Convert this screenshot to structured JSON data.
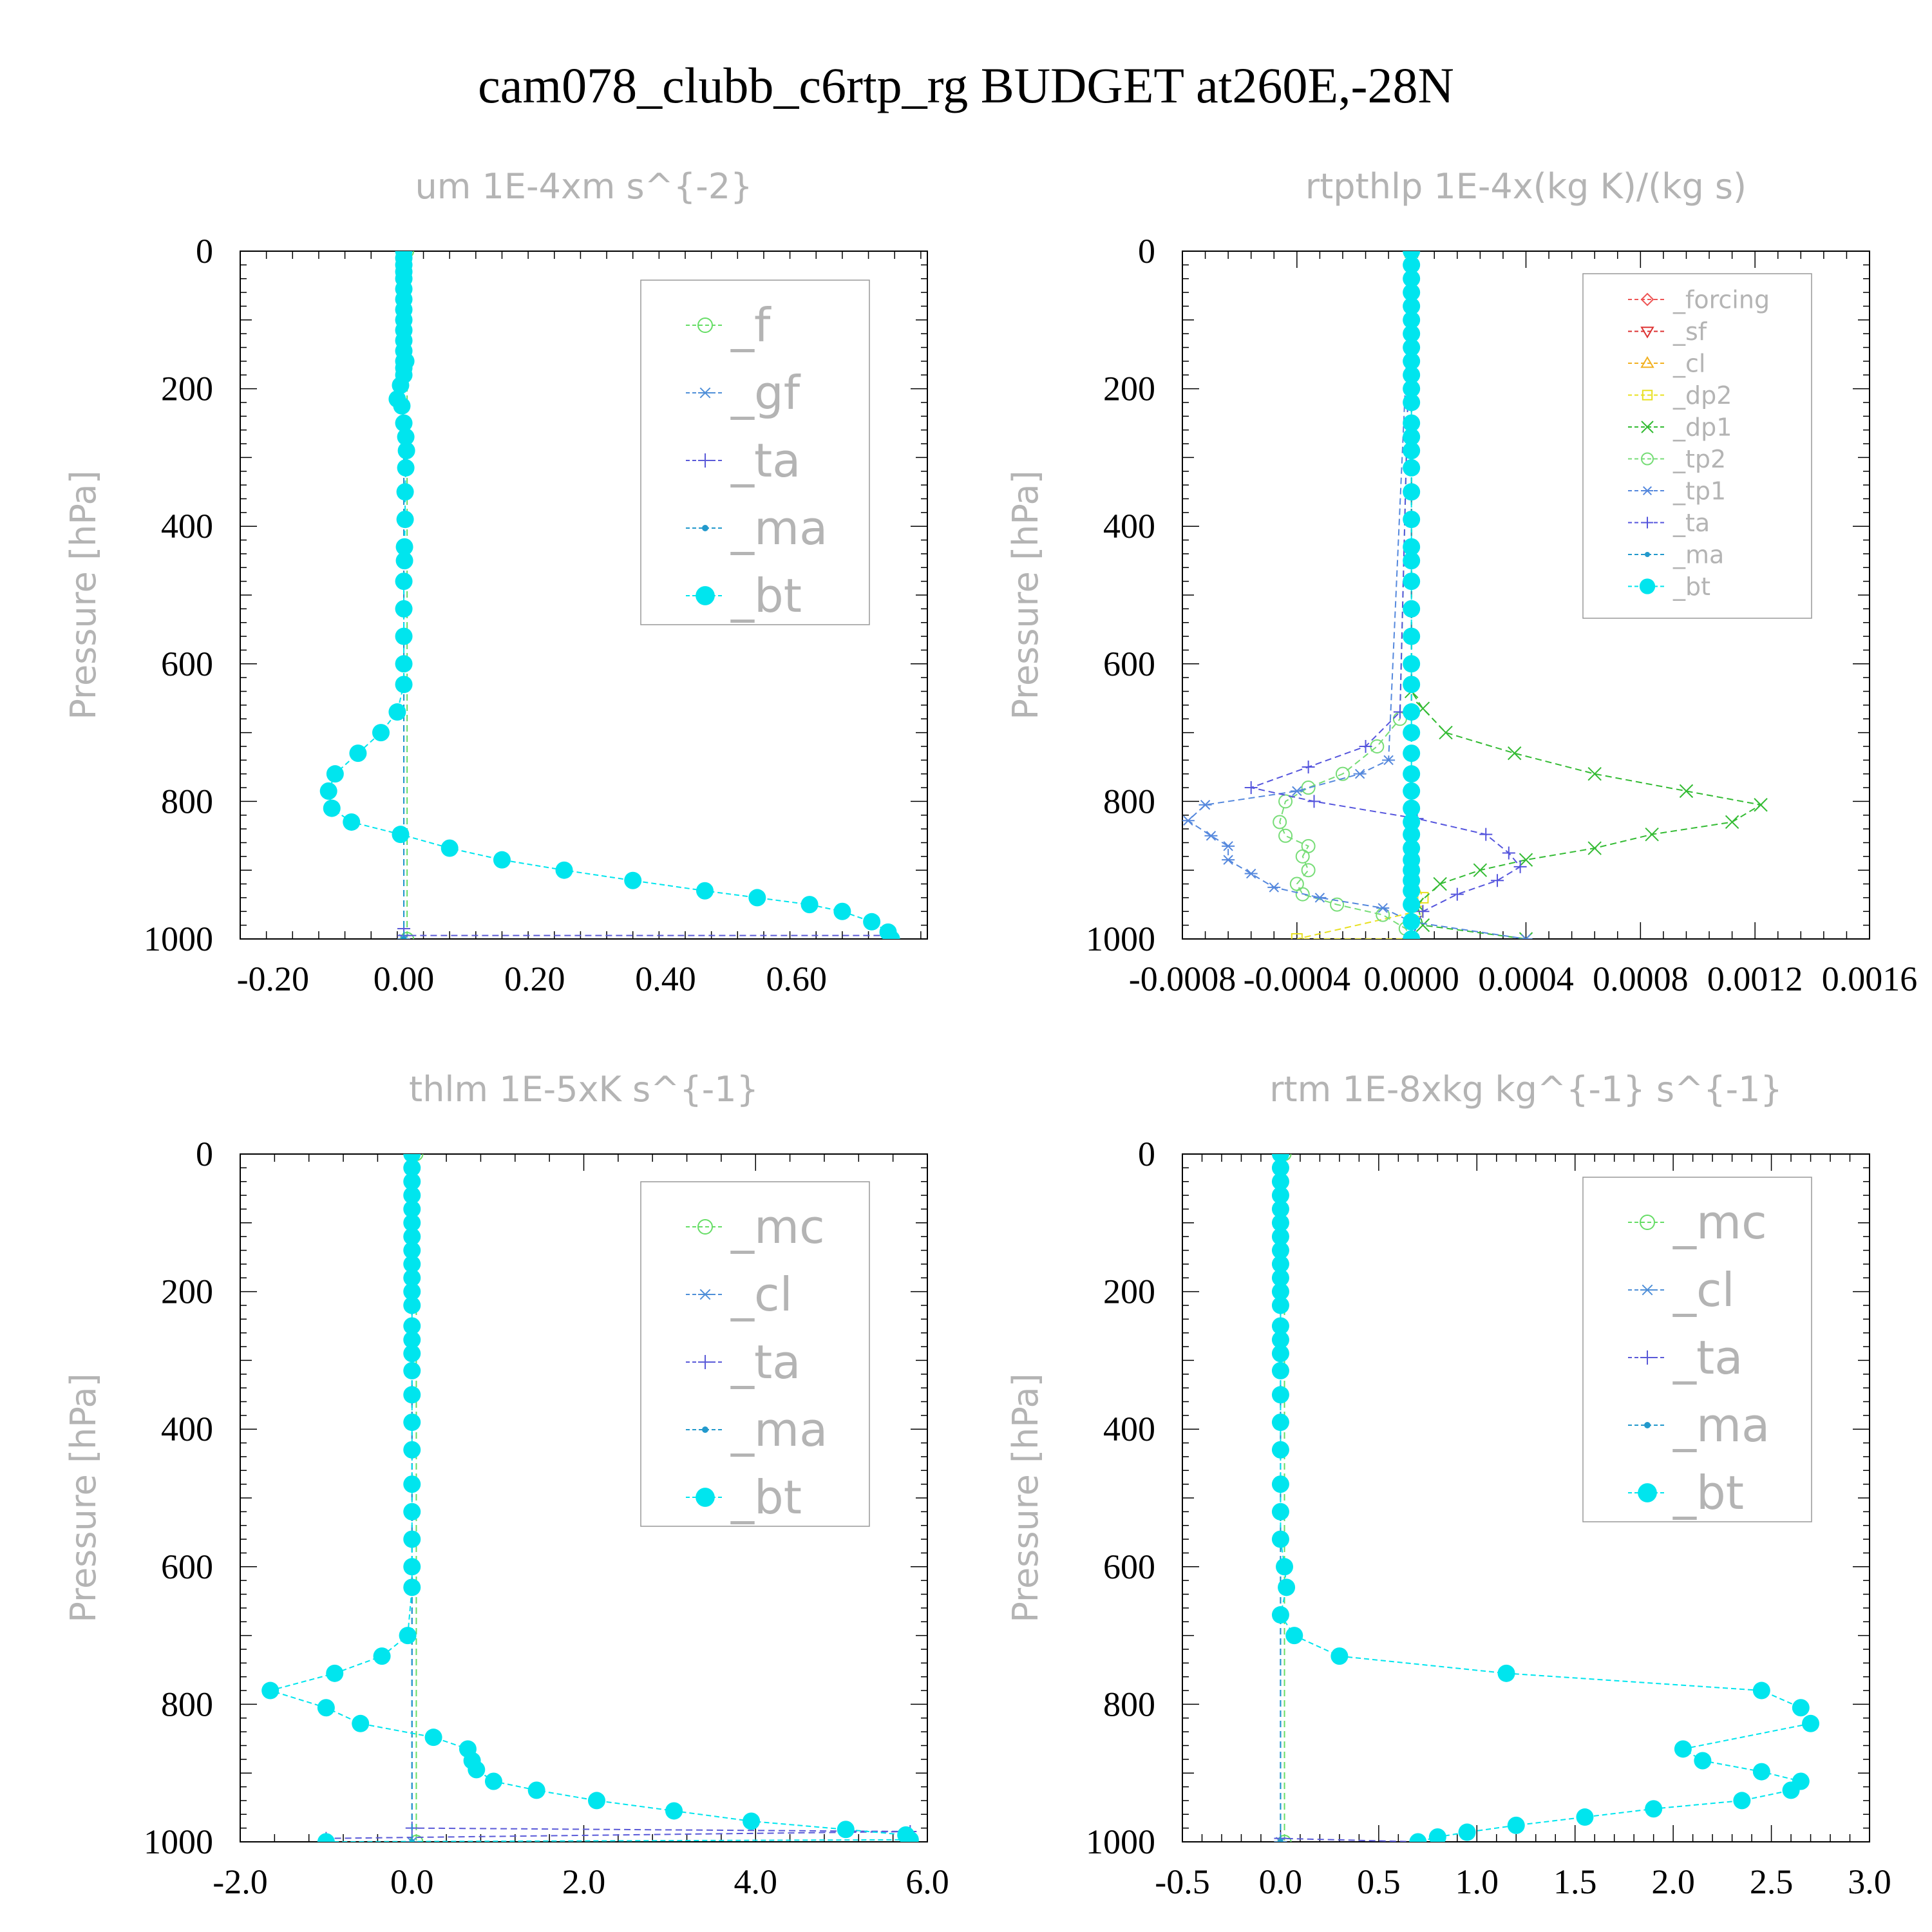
{
  "title": "cam078_clubb_c6rtp_rg  BUDGET at260E,-28N",
  "chart_data": [
    {
      "id": "um",
      "type": "line",
      "title": "um   1E-4xm s^{-2}",
      "ylabel": "Pressure [hPa]",
      "xlim": [
        -0.25,
        0.8
      ],
      "ylim": [
        1000,
        0
      ],
      "xticks": [
        -0.2,
        0.0,
        0.2,
        0.4,
        0.6
      ],
      "xtick_labels": [
        "-0.20",
        "0.00",
        "0.20",
        "0.40",
        "0.60"
      ],
      "yticks": [
        0,
        200,
        400,
        600,
        800,
        1000
      ],
      "ytick_labels": [
        "0",
        "200",
        "400",
        "600",
        "800",
        "1000"
      ],
      "legend_position": "top-right",
      "series": [
        {
          "name": "_f",
          "color": "#66dd66",
          "marker": "circle-open",
          "x": [
            0.005,
            0.005
          ],
          "y": [
            0,
            1000
          ]
        },
        {
          "name": "_gf",
          "color": "#4f8fd8",
          "marker": "asterisk",
          "x": [
            0.0,
            0.0
          ],
          "y": [
            0,
            1000
          ]
        },
        {
          "name": "_ta",
          "color": "#5a5ad8",
          "marker": "plus",
          "x": [
            0.0,
            0.0,
            0.0,
            0.74
          ],
          "y": [
            0,
            985,
            995,
            995
          ]
        },
        {
          "name": "_ma",
          "color": "#2299cc",
          "marker": "dot",
          "x": [
            0.0,
            0.0
          ],
          "y": [
            0,
            1000
          ]
        },
        {
          "name": "_bt",
          "color": "#00e5ee",
          "marker": "filled-circle",
          "x": [
            0.0,
            0.0,
            0.0,
            0.0,
            0.0,
            0.0,
            0.0,
            0.0,
            0.0,
            0.0,
            0.0,
            0.0,
            0.0,
            0.0,
            0.0,
            0.003,
            -0.005,
            -0.01,
            -0.003,
            0.0,
            0.003,
            0.004,
            0.003,
            0.002,
            0.002,
            0.001,
            0.001,
            0.0,
            0.0,
            0.0,
            0.0,
            0.0,
            -0.01,
            -0.035,
            -0.07,
            -0.105,
            -0.115,
            -0.11,
            -0.08,
            -0.005,
            0.07,
            0.15,
            0.245,
            0.35,
            0.46,
            0.54,
            0.62,
            0.67,
            0.715,
            0.74,
            0.745
          ],
          "y": [
            0,
            10,
            20,
            30,
            40,
            55,
            70,
            85,
            100,
            115,
            130,
            145,
            160,
            170,
            180,
            160,
            195,
            215,
            225,
            250,
            270,
            290,
            315,
            350,
            390,
            430,
            450,
            480,
            520,
            560,
            600,
            630,
            670,
            700,
            730,
            760,
            785,
            810,
            830,
            848,
            868,
            885,
            900,
            915,
            930,
            940,
            950,
            960,
            975,
            990,
            1000
          ]
        }
      ]
    },
    {
      "id": "rtpthlp",
      "type": "line",
      "title": "rtpthlp   1E-4x(kg K)/(kg s)",
      "ylabel": "Pressure [hPa]",
      "xlim": [
        -0.0008,
        0.0016
      ],
      "ylim": [
        1000,
        0
      ],
      "xticks": [
        -0.0008,
        -0.0004,
        0.0,
        0.0004,
        0.0008,
        0.0012,
        0.0016
      ],
      "xtick_labels": [
        "-0.0008",
        "-0.0004",
        "0.0000",
        "0.0004",
        "0.0008",
        "0.0012",
        "0.0016"
      ],
      "yticks": [
        0,
        200,
        400,
        600,
        800,
        1000
      ],
      "ytick_labels": [
        "0",
        "200",
        "400",
        "600",
        "800",
        "1000"
      ],
      "legend_position": "top-right",
      "series": [
        {
          "name": "_forcing",
          "color": "#ee5555",
          "marker": "diamond",
          "x": [
            0.0,
            0.0
          ],
          "y": [
            0,
            1000
          ]
        },
        {
          "name": "_sf",
          "color": "#dd3333",
          "marker": "triangle-down",
          "x": [
            0.0,
            0.0
          ],
          "y": [
            0,
            1000
          ]
        },
        {
          "name": "_cl",
          "color": "#f2b020",
          "marker": "triangle-up",
          "x": [
            0.0,
            0.0
          ],
          "y": [
            0,
            1000
          ]
        },
        {
          "name": "_dp2",
          "color": "#e8e020",
          "marker": "box",
          "x": [
            0.0,
            0.0,
            4e-05,
            2e-05,
            -0.0004,
            0.0
          ],
          "y": [
            0,
            900,
            940,
            960,
            1000,
            1000
          ]
        },
        {
          "name": "_dp1",
          "color": "#33bb33",
          "marker": "cross",
          "x": [
            0.0,
            0.0,
            4e-05,
            0.00012,
            0.00036,
            0.00064,
            0.00096,
            0.00122,
            0.00112,
            0.00084,
            0.00064,
            0.0004,
            0.00024,
            0.0001,
            2e-05,
            4e-05,
            0.0004
          ],
          "y": [
            0,
            640,
            665,
            700,
            730,
            760,
            785,
            805,
            830,
            848,
            868,
            885,
            900,
            920,
            950,
            980,
            1000
          ]
        },
        {
          "name": "_tp2",
          "color": "#77dd77",
          "marker": "circle-open",
          "x": [
            0.0,
            -4e-05,
            -0.00012,
            -0.00024,
            -0.00036,
            -0.00044,
            -0.00046,
            -0.00044,
            -0.00036,
            -0.00038,
            -0.00036,
            -0.0004,
            -0.00038,
            -0.00026,
            -0.0001,
            -2e-05,
            0.0
          ],
          "y": [
            0,
            680,
            720,
            760,
            780,
            800,
            830,
            850,
            865,
            880,
            900,
            920,
            935,
            950,
            965,
            985,
            1000
          ]
        },
        {
          "name": "_tp1",
          "color": "#5588dd",
          "marker": "asterisk",
          "x": [
            0.0,
            -8e-05,
            -0.00018,
            -0.0004,
            -0.00072,
            -0.00078,
            -0.0007,
            -0.00064,
            -0.00064,
            -0.00056,
            -0.00048,
            -0.00032,
            -0.0001,
            0.0,
            0.0004
          ],
          "y": [
            0,
            740,
            760,
            785,
            805,
            828,
            850,
            865,
            885,
            905,
            925,
            940,
            955,
            975,
            1000
          ]
        },
        {
          "name": "_ta",
          "color": "#5555dd",
          "marker": "plus",
          "x": [
            0.0,
            -4e-05,
            -0.00016,
            -0.00036,
            -0.00056,
            -0.00034,
            2e-05,
            0.00026,
            0.00034,
            0.00038,
            0.0003,
            0.00016,
            4e-05,
            0.0
          ],
          "y": [
            0,
            670,
            720,
            750,
            780,
            800,
            825,
            848,
            875,
            895,
            915,
            935,
            960,
            1000
          ]
        },
        {
          "name": "_ma",
          "color": "#2299cc",
          "marker": "dot",
          "x": [
            0.0,
            0.0
          ],
          "y": [
            0,
            1000
          ]
        },
        {
          "name": "_bt",
          "color": "#00e5ee",
          "marker": "filled-circle",
          "x": [
            0.0,
            0.0,
            0.0,
            0.0,
            0.0,
            0.0,
            0.0,
            0.0,
            0.0,
            0.0,
            0.0,
            0.0,
            0.0,
            0.0,
            0.0,
            0.0,
            0.0,
            0.0,
            0.0,
            0.0,
            0.0,
            0.0,
            0.0,
            0.0,
            0.0,
            0.0,
            0.0,
            0.0,
            0.0,
            0.0,
            0.0,
            0.0,
            0.0,
            0.0,
            0.0,
            0.0,
            0.0,
            0.0,
            0.0,
            0.0,
            0.0
          ],
          "y": [
            0,
            20,
            40,
            60,
            80,
            100,
            120,
            140,
            160,
            180,
            200,
            220,
            250,
            270,
            290,
            315,
            350,
            390,
            430,
            450,
            480,
            520,
            560,
            600,
            630,
            670,
            700,
            730,
            760,
            785,
            810,
            830,
            848,
            868,
            885,
            900,
            915,
            930,
            950,
            975,
            1000
          ]
        }
      ]
    },
    {
      "id": "thlm",
      "type": "line",
      "title": "thlm   1E-5xK s^{-1}",
      "ylabel": "Pressure [hPa]",
      "xlim": [
        -2.0,
        6.0
      ],
      "ylim": [
        1000,
        0
      ],
      "xticks": [
        -2.0,
        0.0,
        2.0,
        4.0,
        6.0
      ],
      "xtick_labels": [
        "-2.0",
        "0.0",
        "2.0",
        "4.0",
        "6.0"
      ],
      "yticks": [
        0,
        200,
        400,
        600,
        800,
        1000
      ],
      "ytick_labels": [
        "0",
        "200",
        "400",
        "600",
        "800",
        "1000"
      ],
      "legend_position": "top-right",
      "series": [
        {
          "name": "_mc",
          "color": "#66dd66",
          "marker": "circle-open",
          "x": [
            0.05,
            0.05
          ],
          "y": [
            0,
            1000
          ]
        },
        {
          "name": "_cl",
          "color": "#4f8fd8",
          "marker": "asterisk",
          "x": [
            0.0,
            0.0
          ],
          "y": [
            0,
            1000
          ]
        },
        {
          "name": "_ta",
          "color": "#5a5ad8",
          "marker": "plus",
          "x": [
            0.0,
            0.0,
            5.8,
            -1.0
          ],
          "y": [
            0,
            980,
            985,
            995
          ]
        },
        {
          "name": "_ma",
          "color": "#2299cc",
          "marker": "dot",
          "x": [
            0.0,
            0.0
          ],
          "y": [
            0,
            1000
          ]
        },
        {
          "name": "_bt",
          "color": "#00e5ee",
          "marker": "filled-circle",
          "x": [
            0.0,
            0.0,
            0.0,
            0.0,
            0.0,
            0.0,
            0.0,
            0.0,
            0.0,
            0.0,
            0.0,
            0.0,
            0.0,
            0.0,
            0.0,
            0.0,
            0.0,
            0.0,
            0.0,
            0.0,
            0.0,
            0.0,
            0.0,
            0.0,
            -0.05,
            -0.35,
            -0.9,
            -1.65,
            -1.0,
            -0.6,
            0.25,
            0.65,
            0.7,
            0.75,
            0.95,
            1.45,
            2.15,
            3.05,
            3.95,
            5.05,
            5.75,
            5.8,
            -1.0
          ],
          "y": [
            0,
            20,
            40,
            60,
            80,
            100,
            120,
            140,
            160,
            180,
            200,
            220,
            250,
            270,
            290,
            315,
            350,
            390,
            430,
            480,
            520,
            560,
            600,
            630,
            700,
            730,
            755,
            780,
            805,
            828,
            848,
            865,
            882,
            895,
            912,
            925,
            940,
            955,
            970,
            982,
            990,
            997,
            1000
          ]
        }
      ]
    },
    {
      "id": "rtm",
      "type": "line",
      "title": "rtm   1E-8xkg kg^{-1} s^{-1}",
      "ylabel": "Pressure [hPa]",
      "xlim": [
        -0.5,
        3.0
      ],
      "ylim": [
        1000,
        0
      ],
      "xticks": [
        -0.5,
        0.0,
        0.5,
        1.0,
        1.5,
        2.0,
        2.5,
        3.0
      ],
      "xtick_labels": [
        "-0.5",
        "0.0",
        "0.5",
        "1.0",
        "1.5",
        "2.0",
        "2.5",
        "3.0"
      ],
      "yticks": [
        0,
        200,
        400,
        600,
        800,
        1000
      ],
      "ytick_labels": [
        "0",
        "200",
        "400",
        "600",
        "800",
        "1000"
      ],
      "legend_position": "top-right",
      "series": [
        {
          "name": "_mc",
          "color": "#66dd66",
          "marker": "circle-open",
          "x": [
            0.02,
            0.02
          ],
          "y": [
            0,
            1000
          ]
        },
        {
          "name": "_cl",
          "color": "#4f8fd8",
          "marker": "asterisk",
          "x": [
            0.0,
            0.0
          ],
          "y": [
            0,
            1000
          ]
        },
        {
          "name": "_ta",
          "color": "#5a5ad8",
          "marker": "plus",
          "x": [
            0.0,
            0.0,
            0.7
          ],
          "y": [
            0,
            995,
            1000
          ]
        },
        {
          "name": "_ma",
          "color": "#2299cc",
          "marker": "dot",
          "x": [
            0.0,
            0.0
          ],
          "y": [
            0,
            1000
          ]
        },
        {
          "name": "_bt",
          "color": "#00e5ee",
          "marker": "filled-circle",
          "x": [
            0.0,
            0.0,
            0.0,
            0.0,
            0.0,
            0.0,
            0.0,
            0.0,
            0.0,
            0.0,
            0.0,
            0.0,
            0.0,
            0.0,
            0.0,
            0.0,
            0.0,
            0.0,
            0.0,
            0.0,
            0.0,
            0.0,
            0.02,
            0.03,
            0.0,
            0.07,
            0.3,
            1.15,
            2.45,
            2.65,
            2.7,
            2.05,
            2.15,
            2.45,
            2.65,
            2.6,
            2.35,
            1.9,
            1.55,
            1.2,
            0.95,
            0.8,
            0.7
          ],
          "y": [
            0,
            20,
            40,
            60,
            80,
            100,
            120,
            140,
            160,
            180,
            200,
            220,
            250,
            270,
            290,
            315,
            350,
            390,
            430,
            480,
            520,
            560,
            600,
            630,
            670,
            700,
            730,
            755,
            780,
            805,
            828,
            865,
            882,
            898,
            912,
            925,
            940,
            952,
            964,
            976,
            986,
            993,
            1000
          ]
        }
      ]
    }
  ]
}
